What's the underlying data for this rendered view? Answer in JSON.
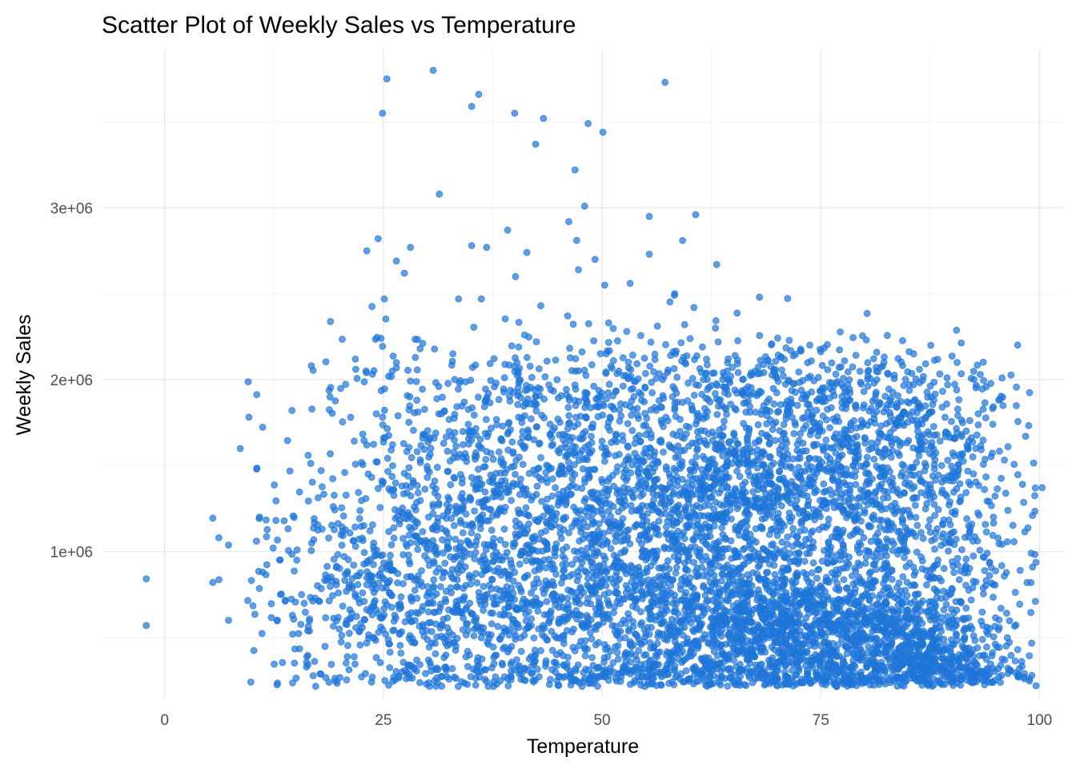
{
  "chart_data": {
    "type": "scatter",
    "title": "Scatter Plot of Weekly Sales vs Temperature",
    "xlabel": "Temperature",
    "ylabel": "Weekly Sales",
    "xlim": [
      -7.2,
      102.8
    ],
    "ylim": [
      150000,
      3920000
    ],
    "x_ticks": [
      0,
      25,
      50,
      75,
      100
    ],
    "x_tick_labels": [
      "0",
      "25",
      "50",
      "75",
      "100"
    ],
    "y_ticks": [
      1000000,
      2000000,
      3000000
    ],
    "y_tick_labels": [
      "1e+06",
      "2e+06",
      "3e+06"
    ],
    "grid": true,
    "legend": "none",
    "point_color": "#1e78dc",
    "point_opacity": 0.72,
    "series": [
      {
        "x": [
          -2.1,
          5.5,
          6.2,
          7.3,
          9.5,
          10.1,
          10.5,
          10.8,
          11.2,
          11.6,
          12.4,
          12.9,
          13.2,
          14.1,
          14.6,
          15.3,
          16.8,
          17.2,
          17.9,
          18.4,
          19.6,
          19.8,
          20.3,
          21.4,
          22.6,
          23.1,
          23.8,
          24.1,
          24.7,
          24.9,
          25.2,
          25.9,
          26.5,
          27.1,
          27.8,
          28.4,
          28.9,
          29.5,
          30.2,
          30.8,
          31.1,
          31.6,
          32.4,
          33.1,
          34.0,
          35.2,
          35.9,
          36.2,
          36.8,
          37.1,
          37.5,
          38.2,
          38.9,
          39.5,
          40.1,
          41.5,
          42.3,
          43.0,
          44.2,
          45.1,
          46.0,
          46.5,
          46.9,
          47.4,
          47.6,
          47.9,
          48.3,
          48.8,
          49.3,
          50.1,
          50.6,
          51.2,
          52.4,
          53.8,
          54.6,
          55.1,
          55.6,
          56.2,
          57.0,
          57.3,
          58.4,
          59.1,
          59.8,
          60.3,
          60.7,
          61.2,
          62.2,
          63.1,
          64.0,
          65.2,
          66.1,
          67.0,
          68.2,
          69.4,
          70.5,
          71.6,
          72.7,
          73.5,
          74.6,
          75.9,
          76.8,
          77.6,
          78.4,
          79.3,
          80.1,
          80.9,
          81.7,
          82.5,
          83.4,
          84.3,
          85.1,
          86.0,
          86.9,
          87.8,
          88.6,
          89.5,
          90.3,
          91.2,
          92.1,
          92.9,
          93.8,
          94.7,
          95.6,
          96.4,
          97.3,
          98.2,
          99.1,
          99.6,
          100.3
        ]
      }
    ]
  }
}
